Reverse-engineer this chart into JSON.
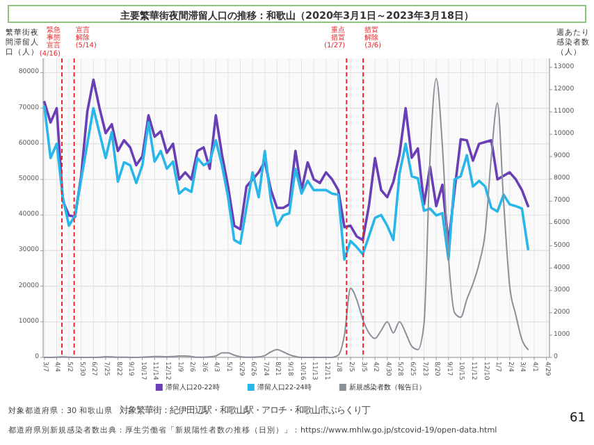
{
  "chart_data": {
    "type": "line",
    "title": "主要繁華街夜間滞留人口の推移：和歌山（2020年3月1日～2023年3月18日）",
    "ylabel": "繁華街夜間滞留人口（人）",
    "y2label": "週あたり感染者数（人）",
    "x": [
      "2020-03-07",
      "2020-03-21",
      "2020-04-04",
      "2020-04-18",
      "2020-05-02",
      "2020-05-16",
      "2020-05-30",
      "2020-06-13",
      "2020-06-27",
      "2020-07-11",
      "2020-07-25",
      "2020-08-08",
      "2020-08-22",
      "2020-09-05",
      "2020-09-19",
      "2020-10-03",
      "2020-10-17",
      "2020-10-31",
      "2020-11-14",
      "2020-11-28",
      "2020-12-12",
      "2020-12-26",
      "2021-01-09",
      "2021-01-23",
      "2021-02-06",
      "2021-02-20",
      "2021-03-06",
      "2021-03-20",
      "2021-04-03",
      "2021-04-17",
      "2021-05-01",
      "2021-05-15",
      "2021-05-29",
      "2021-06-12",
      "2021-06-26",
      "2021-07-10",
      "2021-07-24",
      "2021-08-07",
      "2021-08-21",
      "2021-09-04",
      "2021-09-18",
      "2021-10-02",
      "2021-10-16",
      "2021-10-30",
      "2021-11-13",
      "2021-11-27",
      "2021-12-11",
      "2021-12-25",
      "2022-01-08",
      "2022-01-22",
      "2022-02-05",
      "2022-02-19",
      "2022-03-05",
      "2022-03-19",
      "2022-04-02",
      "2022-04-16",
      "2022-04-30",
      "2022-05-14",
      "2022-05-28",
      "2022-06-11",
      "2022-06-25",
      "2022-07-09",
      "2022-07-23",
      "2022-08-06",
      "2022-08-20",
      "2022-09-03",
      "2022-09-17",
      "2022-10-01",
      "2022-10-15",
      "2022-10-29",
      "2022-11-12",
      "2022-11-26",
      "2022-12-10",
      "2022-12-24",
      "2023-01-07",
      "2023-01-21",
      "2023-02-04",
      "2023-02-18",
      "2023-03-04",
      "2023-03-18"
    ],
    "series": [
      {
        "name": "滞留人口20-22時",
        "color": "#6a3fb5",
        "values": [
          71700,
          66000,
          70000,
          44000,
          39900,
          39500,
          51000,
          69000,
          78000,
          70000,
          63000,
          65500,
          58000,
          61000,
          59000,
          54000,
          56500,
          68000,
          62000,
          63500,
          57500,
          60000,
          50000,
          52000,
          50000,
          58000,
          59000,
          53000,
          68000,
          57000,
          48000,
          37000,
          36000,
          48000,
          50000,
          52000,
          55000,
          47000,
          42000,
          42000,
          43000,
          58000,
          47000,
          54800,
          50000,
          49000,
          52000,
          50000,
          47000,
          36600,
          37000,
          34000,
          33000,
          42500,
          56000,
          47000,
          45000,
          49300,
          57000,
          70000,
          56100,
          58700,
          43000,
          53500,
          42500,
          48500,
          32000,
          47000,
          61300,
          61000,
          55300,
          60000,
          60500,
          61000,
          50000,
          51000,
          52000,
          50000,
          47000,
          42500
        ]
      },
      {
        "name": "滞留人口22-24時",
        "color": "#29b6e8",
        "values": [
          70400,
          56000,
          60000,
          45000,
          37000,
          39900,
          50000,
          60000,
          70000,
          63000,
          56000,
          63300,
          49400,
          54800,
          54000,
          49000,
          54000,
          66000,
          55000,
          58000,
          53000,
          55000,
          46000,
          47500,
          46500,
          56000,
          54000,
          55000,
          61000,
          54000,
          45000,
          33000,
          32000,
          42000,
          52000,
          45000,
          58000,
          44000,
          37000,
          39900,
          40500,
          53000,
          46000,
          49600,
          47000,
          47000,
          47000,
          46000,
          45700,
          27500,
          32700,
          31000,
          29000,
          34000,
          39200,
          40000,
          37000,
          33000,
          51600,
          60000,
          50900,
          50300,
          41200,
          41800,
          39900,
          40500,
          27500,
          50000,
          50900,
          56800,
          48000,
          49600,
          48000,
          42000,
          41000,
          45700,
          43000,
          42500,
          41800,
          30400
        ]
      },
      {
        "name": "新規感染者数（報告日）",
        "color": "#8a8f99",
        "axis": "y2",
        "values": [
          0,
          0,
          10,
          20,
          10,
          0,
          0,
          0,
          0,
          10,
          30,
          20,
          10,
          10,
          0,
          0,
          10,
          20,
          40,
          40,
          30,
          40,
          60,
          60,
          40,
          10,
          10,
          20,
          60,
          200,
          200,
          100,
          30,
          10,
          10,
          20,
          80,
          250,
          350,
          250,
          120,
          40,
          0,
          0,
          0,
          0,
          0,
          0,
          100,
          1000,
          3100,
          2600,
          1700,
          1100,
          850,
          1200,
          1600,
          1100,
          1600,
          1100,
          500,
          350,
          1500,
          9000,
          12500,
          9500,
          4500,
          2000,
          1800,
          2600,
          3300,
          4200,
          5600,
          9000,
          11400,
          7000,
          3200,
          1900,
          800,
          350
        ]
      }
    ],
    "xlim": [
      "2020-03-04",
      "2023-05-06"
    ],
    "xticks": [
      {
        "value": "2020-03-07",
        "label": "3/7"
      },
      {
        "value": "2020-04-04",
        "label": "4/4"
      },
      {
        "value": "2020-05-02",
        "label": "5/2"
      },
      {
        "value": "2020-05-30",
        "label": "5/30"
      },
      {
        "value": "2020-06-27",
        "label": "6/27"
      },
      {
        "value": "2020-07-25",
        "label": "7/25"
      },
      {
        "value": "2020-08-22",
        "label": "8/22"
      },
      {
        "value": "2020-09-19",
        "label": "9/19"
      },
      {
        "value": "2020-10-17",
        "label": "10/17"
      },
      {
        "value": "2020-11-14",
        "label": "11/14"
      },
      {
        "value": "2020-12-12",
        "label": "12/12"
      },
      {
        "value": "2021-01-09",
        "label": "1/9"
      },
      {
        "value": "2021-02-06",
        "label": "2/6"
      },
      {
        "value": "2021-03-06",
        "label": "3/6"
      },
      {
        "value": "2021-04-03",
        "label": "4/3"
      },
      {
        "value": "2021-05-01",
        "label": "5/1"
      },
      {
        "value": "2021-05-29",
        "label": "5/29"
      },
      {
        "value": "2021-06-26",
        "label": "6/26"
      },
      {
        "value": "2021-07-24",
        "label": "7/24"
      },
      {
        "value": "2021-08-21",
        "label": "8/21"
      },
      {
        "value": "2021-09-18",
        "label": "9/18"
      },
      {
        "value": "2021-10-16",
        "label": "10/16"
      },
      {
        "value": "2021-11-13",
        "label": "11/13"
      },
      {
        "value": "2021-12-11",
        "label": "12/11"
      },
      {
        "value": "2022-01-08",
        "label": "1/8"
      },
      {
        "value": "2022-02-05",
        "label": "2/5"
      },
      {
        "value": "2022-03-05",
        "label": "3/5"
      },
      {
        "value": "2022-04-02",
        "label": "4/2"
      },
      {
        "value": "2022-04-30",
        "label": "4/30"
      },
      {
        "value": "2022-05-28",
        "label": "5/28"
      },
      {
        "value": "2022-06-25",
        "label": "6/25"
      },
      {
        "value": "2022-07-23",
        "label": "7/23"
      },
      {
        "value": "2022-08-20",
        "label": "8/20"
      },
      {
        "value": "2022-09-17",
        "label": "9/17"
      },
      {
        "value": "2022-10-15",
        "label": "10/15"
      },
      {
        "value": "2022-11-12",
        "label": "11/12"
      },
      {
        "value": "2022-12-10",
        "label": "12/10"
      },
      {
        "value": "2023-01-07",
        "label": "1/7"
      },
      {
        "value": "2023-02-04",
        "label": "2/4"
      },
      {
        "value": "2023-03-04",
        "label": "3/4"
      },
      {
        "value": "2023-04-01",
        "label": "4/1"
      },
      {
        "value": "2023-04-29",
        "label": "4/29"
      }
    ],
    "ylim": [
      0,
      84000
    ],
    "yticks": [
      0,
      10000,
      20000,
      30000,
      40000,
      50000,
      60000,
      70000,
      80000
    ],
    "y2lim": [
      0,
      13400
    ],
    "y2ticks": [
      0,
      1000,
      2000,
      3000,
      4000,
      5000,
      6000,
      7000,
      8000,
      9000,
      10000,
      11000,
      12000,
      13000
    ],
    "grid": true,
    "legend": "bottom",
    "marker": "none",
    "ref_lines": [
      {
        "axis": "x",
        "value": "2020-04-16",
        "label": "緊急事態宣言(4/16)",
        "color": "#e8262b",
        "line_style": "dashed"
      },
      {
        "axis": "x",
        "value": "2020-05-14",
        "label": "宣言解除(5/14)",
        "color": "#e8262b",
        "line_style": "dashed"
      },
      {
        "axis": "x",
        "value": "2022-01-27",
        "label": "重点措置(1/27)",
        "color": "#e8262b",
        "line_style": "dashed"
      },
      {
        "axis": "x",
        "value": "2022-03-06",
        "label": "措置解除(3/6)",
        "color": "#e8262b",
        "line_style": "dashed"
      }
    ],
    "annotations": [
      "対象都道府県：30 和歌山県",
      "対象繁華街：紀伊田辺駅・和歌山駅・アロチ・和歌山市ぶらくり丁",
      "都道府県別新規感染者数出典：厚生労働省「新規陽性者数の推移（日別）」：https://www.mhlw.go.jp/stcovid-19/open-data.html",
      "61"
    ]
  }
}
